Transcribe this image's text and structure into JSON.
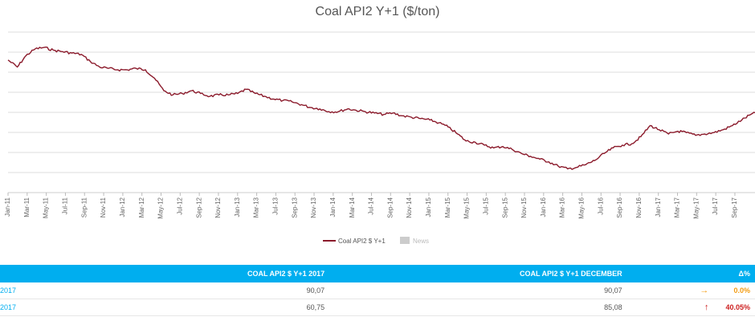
{
  "page": {
    "title": "Coal API2 Y+1 ($/ton)"
  },
  "legend": {
    "series_label": "Coal API2 $ Y+1",
    "news_label": "News"
  },
  "colors": {
    "series": "#8b1a2b",
    "header_bg": "#00aeef",
    "up": "#cc1f1f",
    "flat": "#f39c12"
  },
  "chart_data": {
    "type": "line",
    "title": "Coal API2 Y+1 ($/ton)",
    "xlabel": "",
    "ylabel": "",
    "x_labels": [
      "Jan-11",
      "Mar-11",
      "May-11",
      "Jul-11",
      "Sep-11",
      "Nov-11",
      "Jan-12",
      "Mar-12",
      "May-12",
      "Jul-12",
      "Sep-12",
      "Nov-12",
      "Jan-13",
      "Mar-13",
      "Jul-13",
      "Sep-13",
      "Nov-13",
      "Jan-14",
      "Mar-14",
      "Jul-14",
      "Sep-14",
      "Nov-14",
      "Jan-15",
      "Mar-15",
      "May-15",
      "Jul-15",
      "Sep-15",
      "Nov-15",
      "Jan-16",
      "Mar-16",
      "May-16",
      "Jul-16",
      "Sep-16",
      "Nov-16",
      "Jan-17",
      "Mar-17",
      "May-17",
      "Jul-17",
      "Sep-17"
    ],
    "grid": true,
    "legend": "bottom-center",
    "series": [
      {
        "name": "Coal API2 $ Y+1",
        "color": "#8b1a2b",
        "points": [
          [
            "2011-01",
            125
          ],
          [
            "2011-02",
            120
          ],
          [
            "2011-03",
            128
          ],
          [
            "2011-04",
            133
          ],
          [
            "2011-05",
            134
          ],
          [
            "2011-06",
            132
          ],
          [
            "2011-07",
            131
          ],
          [
            "2011-08",
            130
          ],
          [
            "2011-09",
            129
          ],
          [
            "2011-10",
            124
          ],
          [
            "2011-11",
            120
          ],
          [
            "2011-12",
            119
          ],
          [
            "2012-01",
            118
          ],
          [
            "2012-02",
            118
          ],
          [
            "2012-03",
            119
          ],
          [
            "2012-04",
            118
          ],
          [
            "2012-05",
            112
          ],
          [
            "2012-06",
            103
          ],
          [
            "2012-07",
            100
          ],
          [
            "2012-08",
            101
          ],
          [
            "2012-09",
            103
          ],
          [
            "2012-10",
            101
          ],
          [
            "2012-11",
            99
          ],
          [
            "2012-12",
            100
          ],
          [
            "2013-01",
            100
          ],
          [
            "2013-02",
            101
          ],
          [
            "2013-03",
            104
          ],
          [
            "2013-04",
            101
          ],
          [
            "2013-05",
            99
          ],
          [
            "2013-06",
            97
          ],
          [
            "2013-07",
            96
          ],
          [
            "2013-08",
            95
          ],
          [
            "2013-09",
            93
          ],
          [
            "2013-10",
            91
          ],
          [
            "2013-11",
            90
          ],
          [
            "2013-12",
            88
          ],
          [
            "2014-01",
            88
          ],
          [
            "2014-02",
            90
          ],
          [
            "2014-03",
            89
          ],
          [
            "2014-04",
            88
          ],
          [
            "2014-05",
            87
          ],
          [
            "2014-06",
            86
          ],
          [
            "2014-07",
            87
          ],
          [
            "2014-08",
            85
          ],
          [
            "2014-09",
            84
          ],
          [
            "2014-10",
            83
          ],
          [
            "2014-11",
            82
          ],
          [
            "2014-12",
            80
          ],
          [
            "2015-01",
            77
          ],
          [
            "2015-02",
            72
          ],
          [
            "2015-03",
            67
          ],
          [
            "2015-04",
            66
          ],
          [
            "2015-05",
            64
          ],
          [
            "2015-06",
            62
          ],
          [
            "2015-07",
            63
          ],
          [
            "2015-08",
            61
          ],
          [
            "2015-09",
            58
          ],
          [
            "2015-10",
            56
          ],
          [
            "2015-11",
            54
          ],
          [
            "2015-12",
            52
          ],
          [
            "2016-01",
            49
          ],
          [
            "2016-02",
            47
          ],
          [
            "2016-03",
            48
          ],
          [
            "2016-04",
            50
          ],
          [
            "2016-05",
            53
          ],
          [
            "2016-06",
            58
          ],
          [
            "2016-07",
            62
          ],
          [
            "2016-08",
            64
          ],
          [
            "2016-09",
            65
          ],
          [
            "2016-10",
            70
          ],
          [
            "2016-11",
            78
          ],
          [
            "2016-12",
            75
          ],
          [
            "2017-01",
            72
          ],
          [
            "2017-02",
            74
          ],
          [
            "2017-03",
            73
          ],
          [
            "2017-04",
            71
          ],
          [
            "2017-05",
            72
          ],
          [
            "2017-06",
            73
          ],
          [
            "2017-07",
            75
          ],
          [
            "2017-08",
            78
          ],
          [
            "2017-09",
            82
          ],
          [
            "2017-10",
            86
          ],
          [
            "2017-11",
            88
          ],
          [
            "2017-12",
            85
          ]
        ]
      }
    ],
    "ylim": [
      30,
      145
    ]
  },
  "table": {
    "headers": [
      "",
      "COAL API2 $ Y+1 2017",
      "COAL API2 $ Y+1 DECEMBER",
      "",
      "Δ%"
    ],
    "rows": [
      {
        "label": "2017",
        "col1": "90,07",
        "col2": "90,07",
        "arrow": "→",
        "delta": "0.0%",
        "trend": "flat"
      },
      {
        "label": "2017",
        "col1": "60,75",
        "col2": "85,08",
        "arrow": "↑",
        "delta": "40.05%",
        "trend": "up"
      }
    ]
  }
}
